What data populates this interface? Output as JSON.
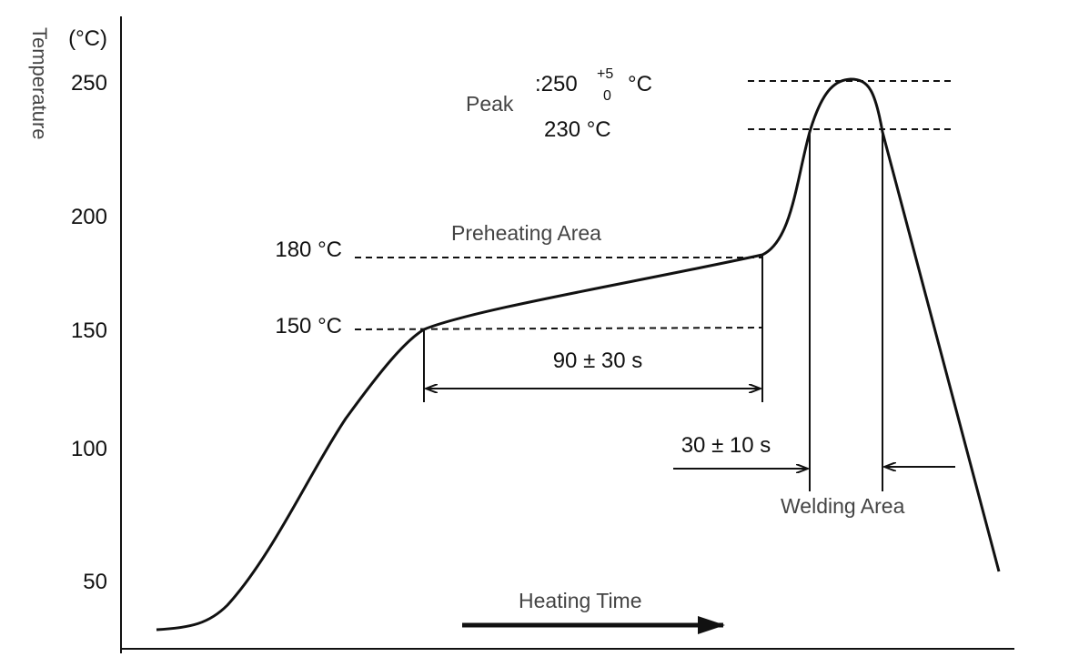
{
  "axis": {
    "unit": "(°C)",
    "title": "Temperature",
    "ticks": [
      "250",
      "200",
      "150",
      "100",
      "50"
    ],
    "x_title": "Heating Time"
  },
  "peak": {
    "label": "Peak",
    "value": ":250",
    "tol_plus": "+5",
    "tol_minus": "0",
    "unit": "°C",
    "lower": "230 °C"
  },
  "preheat": {
    "label": "Preheating Area",
    "upper": "180 °C",
    "lower": "150 °C",
    "duration": "90 ± 30 s"
  },
  "welding": {
    "label": "Welding Area",
    "duration": "30 ± 10 s"
  }
}
